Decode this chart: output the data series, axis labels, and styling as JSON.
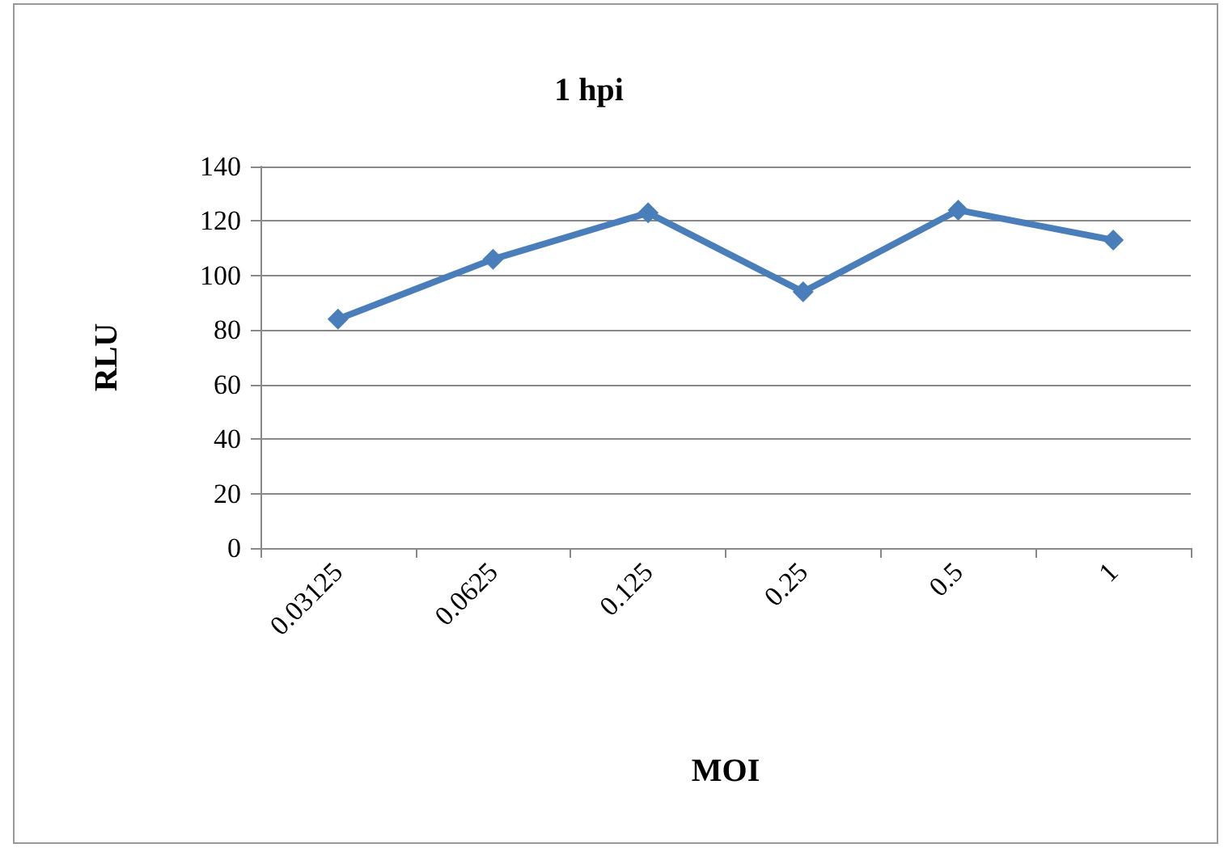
{
  "chart_data": {
    "type": "line",
    "title": "1 hpi",
    "xlabel": "MOI",
    "ylabel": "RLU",
    "categories": [
      "0.03125",
      "0.0625",
      "0.125",
      "0.25",
      "0.5",
      "1"
    ],
    "series": [
      {
        "color": "#4a7ebb",
        "values": [
          84,
          106,
          123,
          94,
          124,
          113
        ]
      }
    ],
    "ylim": [
      0,
      140
    ],
    "yticks": [
      0,
      20,
      40,
      60,
      80,
      100,
      120,
      140
    ],
    "grid": "y",
    "marker": "diamond",
    "line_style": "solid"
  }
}
